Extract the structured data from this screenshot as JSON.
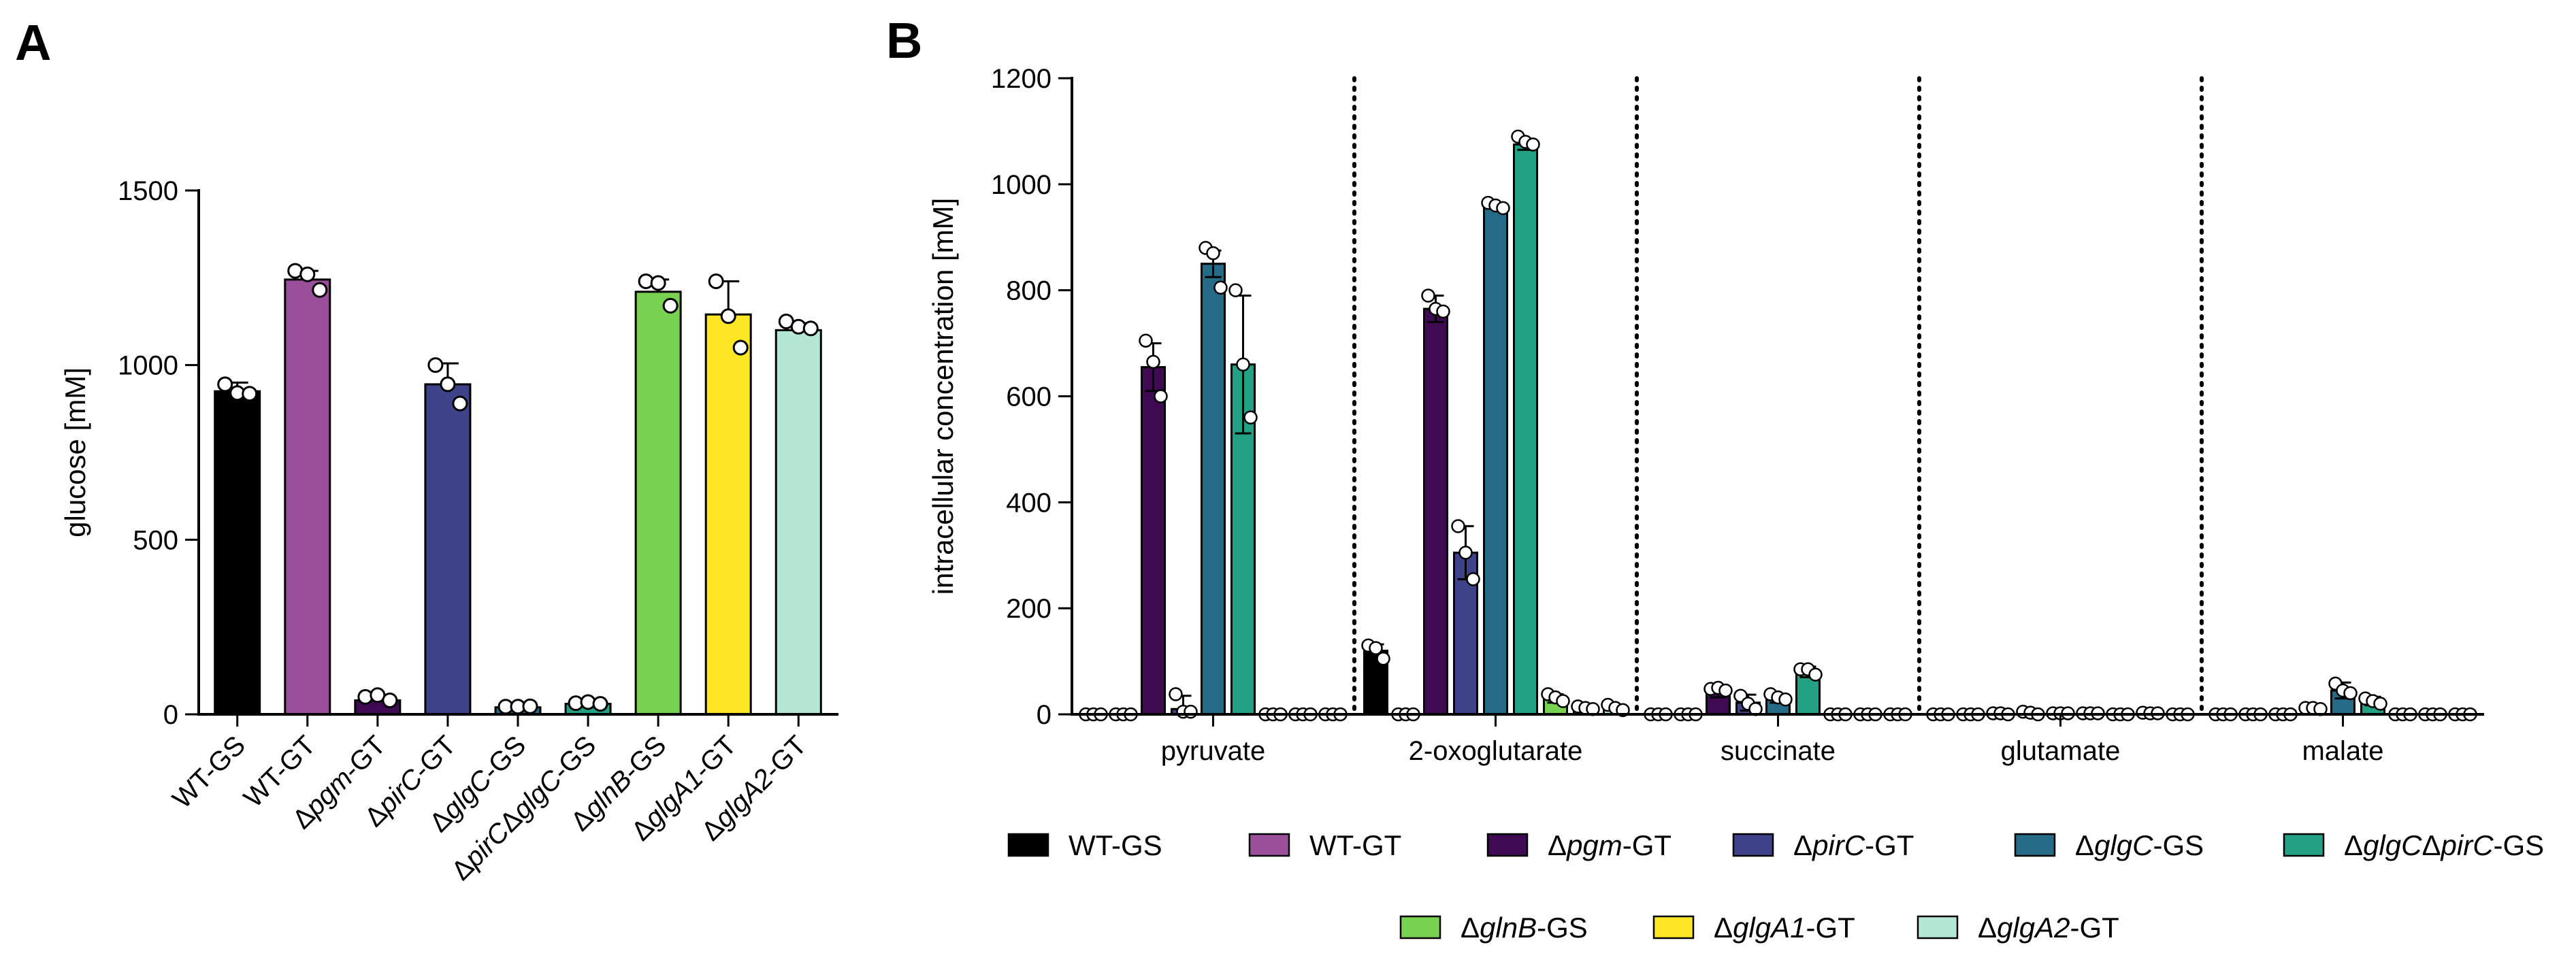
{
  "panel_a_label": "A",
  "panel_b_label": "B",
  "chart_data": [
    {
      "type": "bar",
      "panel": "A",
      "ylabel": "glucose [mM]",
      "ylim": [
        0,
        1500
      ],
      "yticks": [
        0,
        500,
        1000,
        1500
      ],
      "grid": false,
      "categories": [
        {
          "pre": "WT-GS",
          "it": "",
          "post": ""
        },
        {
          "pre": "WT-GT",
          "it": "",
          "post": ""
        },
        {
          "pre": "Δ",
          "it": "pgm",
          "post": "-GT"
        },
        {
          "pre": "Δ",
          "it": "pirC",
          "post": "-GT"
        },
        {
          "pre": "Δ",
          "it": "glgC",
          "post": "-GS"
        },
        {
          "pre": "Δ",
          "it": "pirC",
          "post": "Δ",
          "it2": "glgC",
          "post2": "-GS"
        },
        {
          "pre": "Δ",
          "it": "glnB",
          "post": "-GS"
        },
        {
          "pre": "Δ",
          "it": "glgA1",
          "post": "-GT"
        },
        {
          "pre": "Δ",
          "it": "glgA2",
          "post": "-GT"
        }
      ],
      "colors": [
        "#000000",
        "#9a4f9a",
        "#3f0a52",
        "#3e4389",
        "#256a86",
        "#23a184",
        "#79d151",
        "#fde725",
        "#b5e8d4"
      ],
      "values": [
        925,
        1245,
        40,
        945,
        20,
        30,
        1210,
        1145,
        1100
      ],
      "errors": [
        25,
        25,
        15,
        60,
        5,
        8,
        35,
        95,
        20
      ],
      "points": [
        [
          945,
          920,
          918
        ],
        [
          1270,
          1260,
          1215
        ],
        [
          50,
          55,
          40
        ],
        [
          1000,
          945,
          890
        ],
        [
          22,
          22,
          23
        ],
        [
          32,
          35,
          30
        ],
        [
          1240,
          1235,
          1170
        ],
        [
          1240,
          1140,
          1050
        ],
        [
          1125,
          1110,
          1105
        ]
      ]
    },
    {
      "type": "bar",
      "panel": "B",
      "ylabel": "intracellular concentration [mM]",
      "ylim": [
        0,
        1200
      ],
      "yticks": [
        0,
        200,
        400,
        600,
        800,
        1000,
        1200
      ],
      "grid": false,
      "groups": [
        "pyruvate",
        "2-oxoglutarate",
        "succinate",
        "glutamate",
        "malate"
      ],
      "series": [
        {
          "pre": "WT-GS",
          "it": "",
          "post": "",
          "color": "#000000",
          "values": [
            0,
            120,
            0,
            0,
            0
          ],
          "errors": [
            0,
            12,
            0,
            0,
            0
          ],
          "points": [
            [
              0,
              0,
              0
            ],
            [
              130,
              125,
              105
            ],
            [
              0,
              0,
              0
            ],
            [
              0,
              0,
              0
            ],
            [
              0,
              0,
              0
            ]
          ]
        },
        {
          "pre": "WT-GT",
          "it": "",
          "post": "",
          "color": "#9a4f9a",
          "values": [
            0,
            0,
            0,
            0,
            0
          ],
          "errors": [
            0,
            0,
            0,
            0,
            0
          ],
          "points": [
            [
              0,
              0,
              0
            ],
            [
              0,
              0,
              0
            ],
            [
              0,
              0,
              0
            ],
            [
              0,
              0,
              0
            ],
            [
              0,
              0,
              0
            ]
          ]
        },
        {
          "pre": "Δ",
          "it": "pgm",
          "post": "-GT",
          "color": "#3f0a52",
          "values": [
            655,
            765,
            40,
            0,
            0
          ],
          "errors": [
            45,
            25,
            8,
            0,
            0
          ],
          "points": [
            [
              705,
              665,
              600
            ],
            [
              790,
              765,
              760
            ],
            [
              48,
              50,
              45
            ],
            [
              2,
              2,
              0
            ],
            [
              0,
              0,
              0
            ]
          ]
        },
        {
          "pre": "Δ",
          "it": "pirC",
          "post": "-GT",
          "color": "#3e4389",
          "values": [
            10,
            305,
            22,
            3,
            10
          ],
          "errors": [
            25,
            50,
            15,
            3,
            3
          ],
          "points": [
            [
              38,
              5,
              5
            ],
            [
              355,
              305,
              255
            ],
            [
              35,
              20,
              10
            ],
            [
              5,
              3,
              0
            ],
            [
              12,
              12,
              10
            ]
          ]
        },
        {
          "pre": "Δ",
          "it": "glgC",
          "post": "-GS",
          "color": "#256a86",
          "values": [
            850,
            960,
            30,
            2,
            45
          ],
          "errors": [
            25,
            5,
            8,
            2,
            15
          ],
          "points": [
            [
              880,
              870,
              805
            ],
            [
              965,
              960,
              955
            ],
            [
              38,
              32,
              28
            ],
            [
              2,
              2,
              2
            ],
            [
              58,
              45,
              40
            ]
          ]
        },
        {
          "pre": "Δ",
          "it": "glgC",
          "post": "Δ",
          "it2": "pirC",
          "post2": "-GS",
          "color": "#23a184",
          "values": [
            660,
            1075,
            80,
            2,
            25
          ],
          "errors": [
            130,
            10,
            10,
            2,
            8
          ],
          "points": [
            [
              800,
              660,
              560
            ],
            [
              1090,
              1080,
              1075
            ],
            [
              85,
              85,
              75
            ],
            [
              2,
              2,
              2
            ],
            [
              30,
              25,
              20
            ]
          ]
        },
        {
          "pre": "Δ",
          "it": "glnB",
          "post": "-GS",
          "color": "#79d151",
          "values": [
            0,
            30,
            0,
            0,
            0
          ],
          "errors": [
            0,
            8,
            0,
            0,
            0
          ],
          "points": [
            [
              0,
              0,
              0
            ],
            [
              38,
              32,
              25
            ],
            [
              0,
              0,
              0
            ],
            [
              0,
              0,
              0
            ],
            [
              0,
              0,
              0
            ]
          ]
        },
        {
          "pre": "Δ",
          "it": "glgA1",
          "post": "-GT",
          "color": "#fde725",
          "values": [
            0,
            12,
            0,
            2,
            0
          ],
          "errors": [
            0,
            4,
            0,
            1,
            0
          ],
          "points": [
            [
              0,
              0,
              0
            ],
            [
              15,
              12,
              10
            ],
            [
              0,
              0,
              0
            ],
            [
              3,
              2,
              2
            ],
            [
              0,
              0,
              0
            ]
          ]
        },
        {
          "pre": "Δ",
          "it": "glgA2",
          "post": "-GT",
          "color": "#b5e8d4",
          "values": [
            0,
            12,
            0,
            0,
            0
          ],
          "errors": [
            0,
            5,
            0,
            0,
            0
          ],
          "points": [
            [
              0,
              0,
              0
            ],
            [
              18,
              12,
              8
            ],
            [
              0,
              0,
              0
            ],
            [
              0,
              0,
              0
            ],
            [
              0,
              0,
              0
            ]
          ]
        }
      ],
      "legend": {
        "placement": "bottom",
        "rows": [
          [
            0,
            1,
            2,
            3,
            4,
            5
          ],
          [
            6,
            7,
            8
          ]
        ]
      }
    }
  ]
}
